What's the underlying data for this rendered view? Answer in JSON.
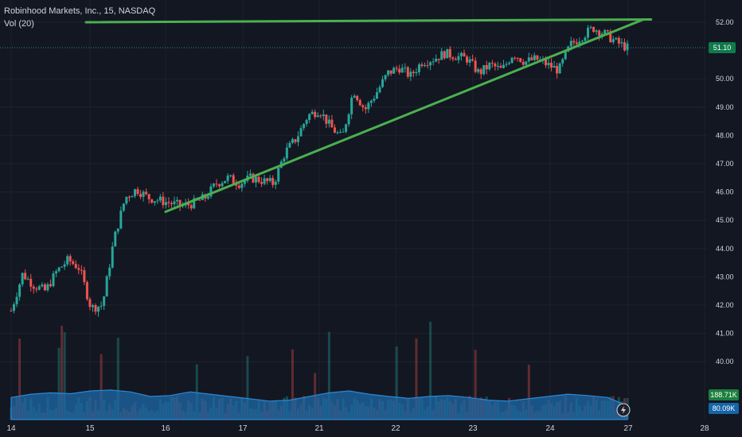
{
  "header": {
    "symbol": "Robinhood Markets, Inc., 15, NASDAQ",
    "volume_label": "Vol (20)"
  },
  "colors": {
    "background": "#131722",
    "up": "#26a69a",
    "down": "#ef5350",
    "trendline": "#4caf50",
    "volume_ma_fill": "#1e6aa8",
    "volume_ma_line": "#2a88d8",
    "price_badge": "#0f7a4a",
    "vol_badge_1": "#1b7f3e",
    "vol_badge_2": "#1565a8"
  },
  "chart_data": {
    "type": "candlestick",
    "title": "Robinhood Markets, Inc., 15, NASDAQ",
    "x_ticks": [
      "14",
      "15",
      "16",
      "17",
      "21",
      "22",
      "23",
      "24",
      "27",
      "28"
    ],
    "y_ticks": [
      "40.00",
      "41.00",
      "42.00",
      "43.00",
      "44.00",
      "45.00",
      "46.00",
      "47.00",
      "48.00",
      "49.00",
      "50.00",
      "52.00"
    ],
    "ylim": [
      39.2,
      52.3
    ],
    "grid": true,
    "last_price": "51.10",
    "volume_badges": [
      "188.71K",
      "80.09K"
    ],
    "price_path": [
      [
        0,
        41.8
      ],
      [
        1,
        43.1
      ],
      [
        2,
        42.7
      ],
      [
        3,
        42.5
      ],
      [
        4,
        43.2
      ],
      [
        5,
        43.6
      ],
      [
        6,
        43.3
      ],
      [
        7,
        41.9
      ],
      [
        8,
        42.0
      ],
      [
        9,
        44.3
      ],
      [
        10,
        45.8
      ],
      [
        11,
        46.1
      ],
      [
        12,
        45.8
      ],
      [
        13,
        45.7
      ],
      [
        14,
        45.6
      ],
      [
        15,
        45.5
      ],
      [
        16,
        45.6
      ],
      [
        17,
        45.8
      ],
      [
        18,
        46.3
      ],
      [
        19,
        46.5
      ],
      [
        20,
        46.3
      ],
      [
        21,
        46.5
      ],
      [
        22,
        46.4
      ],
      [
        23,
        46.3
      ],
      [
        24,
        47.4
      ],
      [
        25,
        47.9
      ],
      [
        26,
        48.7
      ],
      [
        27,
        48.9
      ],
      [
        28,
        48.3
      ],
      [
        29,
        47.9
      ],
      [
        30,
        49.6
      ],
      [
        31,
        48.9
      ],
      [
        32,
        49.5
      ],
      [
        33,
        50.2
      ],
      [
        34,
        50.4
      ],
      [
        35,
        50.1
      ],
      [
        36,
        50.6
      ],
      [
        37,
        50.7
      ],
      [
        38,
        50.9
      ],
      [
        39,
        50.8
      ],
      [
        40,
        50.7
      ],
      [
        41,
        50.2
      ],
      [
        42,
        50.5
      ],
      [
        43,
        50.3
      ],
      [
        44,
        50.9
      ],
      [
        45,
        50.6
      ],
      [
        46,
        50.7
      ],
      [
        47,
        50.5
      ],
      [
        48,
        50.3
      ],
      [
        49,
        51.2
      ],
      [
        50,
        51.5
      ],
      [
        51,
        51.8
      ],
      [
        52,
        51.6
      ],
      [
        53,
        51.3
      ],
      [
        54,
        51.1
      ]
    ],
    "trendlines": [
      {
        "name": "upper",
        "points": [
          [
            0.95,
            52.0
          ],
          [
            8.3,
            52.1
          ]
        ]
      },
      {
        "name": "lower",
        "points": [
          [
            2.0,
            45.3
          ],
          [
            8.2,
            52.1
          ]
        ]
      }
    ],
    "volume_ma_path": [
      0.48,
      0.55,
      0.58,
      0.56,
      0.62,
      0.64,
      0.6,
      0.5,
      0.52,
      0.6,
      0.55,
      0.5,
      0.45,
      0.4,
      0.42,
      0.5,
      0.58,
      0.62,
      0.55,
      0.5,
      0.46,
      0.5,
      0.52,
      0.48,
      0.42,
      0.4,
      0.45,
      0.5,
      0.55,
      0.52,
      0.48,
      0.3
    ]
  }
}
